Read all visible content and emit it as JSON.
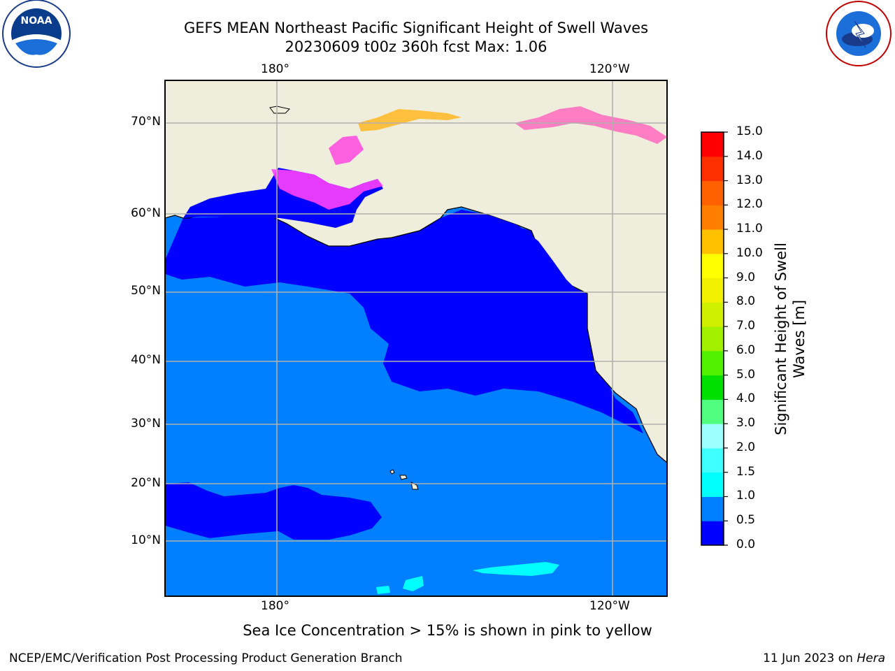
{
  "header": {
    "title_line1": "GEFS MEAN Northeast Pacific Significant Height of Swell Waves",
    "title_line2": "20230609 t00z 360h fcst   Max: 1.06"
  },
  "logos": {
    "left": "NOAA",
    "right": "NATIONAL WEATHER SERVICE"
  },
  "map": {
    "lon_labels_top": [
      "180°",
      "120°W"
    ],
    "lon_labels_bottom": [
      "180°",
      "120°W"
    ],
    "lat_labels": [
      "70°N",
      "60°N",
      "50°N",
      "40°N",
      "30°N",
      "20°N",
      "10°N"
    ],
    "colors": {
      "land": "#efeedc",
      "ocean_light": "#0080ff",
      "ocean_dark": "#0000ff",
      "grid": "#b0b0b0"
    }
  },
  "colorbar": {
    "label_line1": "Significant Height of Swell",
    "label_line2": "Waves [m]",
    "ticks": [
      "15.0",
      "14.0",
      "13.0",
      "12.0",
      "11.0",
      "10.0",
      "9.0",
      "8.0",
      "7.0",
      "6.0",
      "5.0",
      "4.0",
      "3.0",
      "2.0",
      "1.5",
      "1.0",
      "0.5",
      "0.0"
    ],
    "colors_bottom_to_top": [
      "#0000ff",
      "#0080ff",
      "#00ffff",
      "#40ffff",
      "#a0ffff",
      "#50ff80",
      "#00e000",
      "#50f000",
      "#a0f000",
      "#d0f000",
      "#f0f000",
      "#ffff00",
      "#ffc000",
      "#ff8000",
      "#ff6000",
      "#ff3000",
      "#ff0000"
    ]
  },
  "footer": {
    "note": "Sea Ice Concentration > 15% is shown in pink to yellow",
    "credit": "NCEP/EMC/Verification Post Processing Product Generation Branch",
    "date_prefix": "11 Jun 2023 on ",
    "machine": "Hera"
  }
}
